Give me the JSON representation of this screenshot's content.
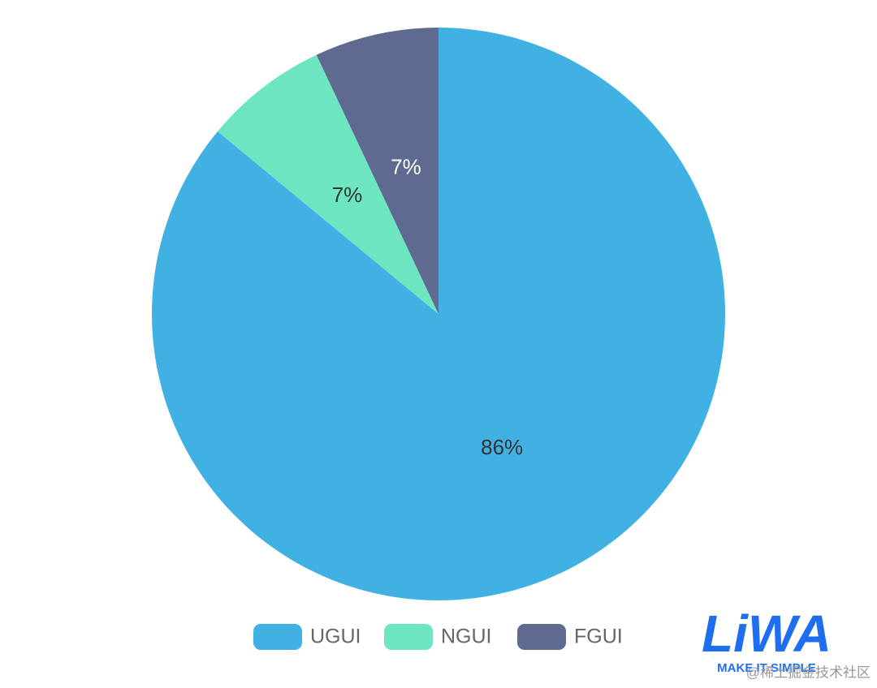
{
  "chart_data": {
    "type": "pie",
    "categories": [
      "UGUI",
      "NGUI",
      "FGUI"
    ],
    "values": [
      86,
      7,
      7
    ],
    "value_labels": [
      "86%",
      "7%",
      "7%"
    ],
    "colors": [
      "#41b1e3",
      "#6de5c1",
      "#5f6a91"
    ],
    "label_colors": [
      "#333333",
      "#333333",
      "#ffffff"
    ],
    "legend": "bottom"
  },
  "logo": {
    "text": "LiWA",
    "tagline": "MAKE IT SIMPLE"
  },
  "watermark": "@稀土掘金技术社区"
}
